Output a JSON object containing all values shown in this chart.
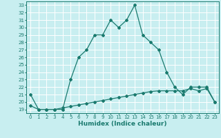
{
  "xlabel": "Humidex (Indice chaleur)",
  "x": [
    0,
    1,
    2,
    3,
    4,
    5,
    6,
    7,
    8,
    9,
    10,
    11,
    12,
    13,
    14,
    15,
    16,
    17,
    18,
    19,
    20,
    21,
    22,
    23
  ],
  "line1": [
    21,
    19,
    19,
    19,
    19,
    23,
    26,
    27,
    29,
    29,
    31,
    30,
    31,
    33,
    29,
    28,
    27,
    24,
    22,
    21,
    22,
    22,
    22,
    20
  ],
  "line2": [
    19.5,
    19.0,
    19.0,
    19.0,
    19.2,
    19.4,
    19.6,
    19.8,
    20.0,
    20.2,
    20.4,
    20.6,
    20.8,
    21.0,
    21.2,
    21.4,
    21.5,
    21.5,
    21.5,
    21.5,
    21.8,
    21.5,
    21.8,
    20.0
  ],
  "line_color": "#1a7a6e",
  "bg_color": "#c8eef0",
  "grid_color": "#ffffff",
  "ylim_min": 18.5,
  "ylim_max": 33.5,
  "yticks": [
    19,
    20,
    21,
    22,
    23,
    24,
    25,
    26,
    27,
    28,
    29,
    30,
    31,
    32,
    33
  ],
  "xticks": [
    0,
    1,
    2,
    3,
    4,
    5,
    6,
    7,
    8,
    9,
    10,
    11,
    12,
    13,
    14,
    15,
    16,
    17,
    18,
    19,
    20,
    21,
    22,
    23
  ],
  "marker": "D",
  "markersize": 2.0,
  "linewidth": 0.9,
  "tick_fontsize": 5.0,
  "xlabel_fontsize": 6.5
}
